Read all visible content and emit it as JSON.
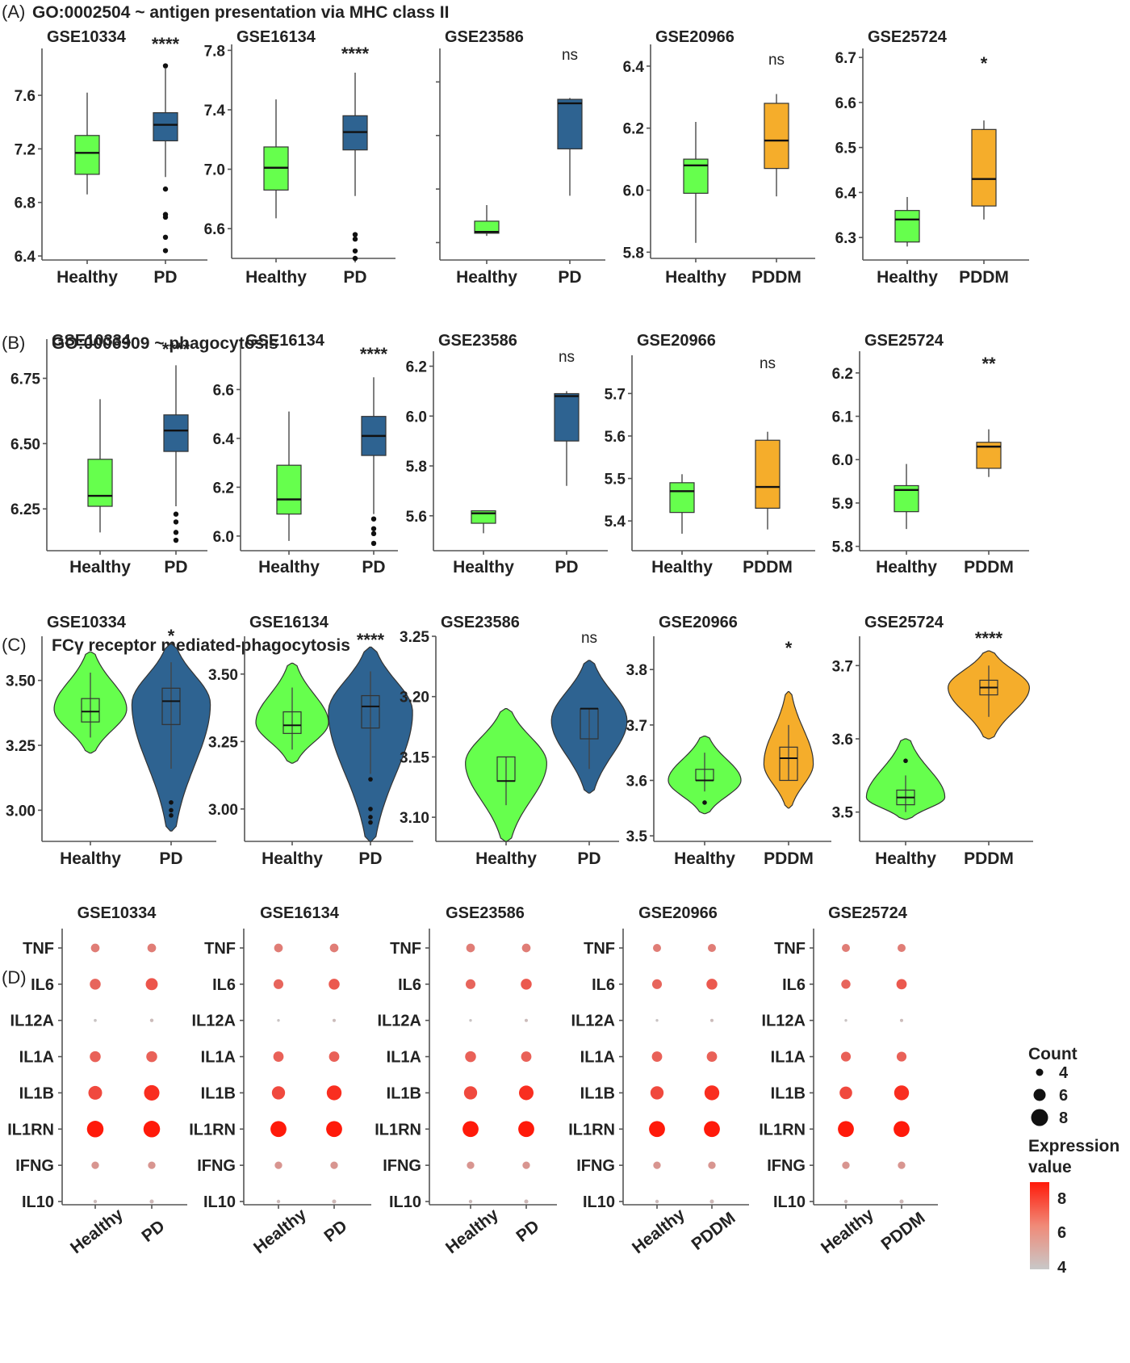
{
  "colors": {
    "healthy": "#66ff4d",
    "pd": "#2e6391",
    "pddm": "#f5ad2b",
    "low": "#c8c8c8",
    "high": "#ff1a0a"
  },
  "panels": [
    {
      "label": "(A)",
      "title": "GO:0002504 ~ antigen presentation via MHC class II"
    },
    {
      "label": "(B)",
      "title": "GO:0006909 ~ phagocytosis"
    },
    {
      "label": "(C)",
      "title": "FCγ receptor mediated-phagocytosis"
    },
    {
      "label": "(D)",
      "title": ""
    }
  ],
  "legend": {
    "count_title": "Count",
    "count_values": [
      "4",
      "6",
      "8"
    ],
    "expr_title": [
      "Expression",
      "value"
    ],
    "expr_values": [
      "8",
      "6",
      "4"
    ]
  },
  "chart_data": [
    {
      "panel": "A",
      "type": "box",
      "title": "GSE10334",
      "sig": "****",
      "categories": [
        "Healthy",
        "PD"
      ],
      "ylim": [
        6.37,
        7.95
      ],
      "yticks": [
        "6.4",
        "6.8",
        "7.2",
        "7.6"
      ],
      "boxes": [
        {
          "wlo": 6.86,
          "q1": 7.01,
          "med": 7.17,
          "q3": 7.3,
          "whi": 7.62,
          "out": []
        },
        {
          "wlo": 6.99,
          "q1": 7.26,
          "med": 7.38,
          "q3": 7.47,
          "whi": 7.8,
          "out": [
            7.82,
            6.9,
            6.71,
            6.69,
            6.54,
            6.44
          ]
        }
      ]
    },
    {
      "panel": "A",
      "type": "box",
      "title": "GSE16134",
      "sig": "****",
      "categories": [
        "Healthy",
        "PD"
      ],
      "ylim": [
        6.4,
        7.84
      ],
      "yticks": [
        "6.6",
        "7.0",
        "7.4",
        "7.8"
      ],
      "boxes": [
        {
          "wlo": 6.67,
          "q1": 6.86,
          "med": 7.01,
          "q3": 7.15,
          "whi": 7.47,
          "out": []
        },
        {
          "wlo": 6.82,
          "q1": 7.13,
          "med": 7.25,
          "q3": 7.36,
          "whi": 7.65,
          "out": [
            6.56,
            6.53,
            6.45,
            6.4
          ]
        }
      ]
    },
    {
      "panel": "A",
      "type": "box",
      "title": "GSE23586",
      "sig": "ns",
      "categories": [
        "Healthy",
        "PD"
      ],
      "ylim": [
        6.37,
        7.95
      ],
      "yticks": [
        "",
        "",
        "",
        ""
      ],
      "boxes": [
        {
          "wlo": 6.55,
          "q1": 6.57,
          "med": 6.58,
          "q3": 6.66,
          "whi": 6.78,
          "out": []
        },
        {
          "wlo": 6.85,
          "q1": 7.2,
          "med": 7.54,
          "q3": 7.57,
          "whi": 7.58,
          "out": []
        }
      ]
    },
    {
      "panel": "A",
      "type": "box",
      "title": "GSE20966",
      "sig": "ns",
      "categories": [
        "Healthy",
        "PDDM"
      ],
      "ylim": [
        5.78,
        6.47
      ],
      "yticks": [
        "5.8",
        "6.0",
        "6.2",
        "6.4"
      ],
      "boxes": [
        {
          "wlo": 5.83,
          "q1": 5.99,
          "med": 6.08,
          "q3": 6.1,
          "whi": 6.22,
          "out": []
        },
        {
          "wlo": 5.98,
          "q1": 6.07,
          "med": 6.16,
          "q3": 6.28,
          "whi": 6.31,
          "out": []
        }
      ]
    },
    {
      "panel": "A",
      "type": "box",
      "title": "GSE25724",
      "sig": "*",
      "categories": [
        "Healthy",
        "PDDM"
      ],
      "ylim": [
        6.25,
        6.72
      ],
      "yticks": [
        "6.3",
        "6.4",
        "6.5",
        "6.6",
        "6.7"
      ],
      "boxes": [
        {
          "wlo": 6.28,
          "q1": 6.29,
          "med": 6.34,
          "q3": 6.36,
          "whi": 6.39,
          "out": []
        },
        {
          "wlo": 6.34,
          "q1": 6.37,
          "med": 6.43,
          "q3": 6.54,
          "whi": 6.56,
          "out": []
        }
      ]
    },
    {
      "panel": "B",
      "type": "box",
      "title": "GSE10334",
      "sig": "****",
      "categories": [
        "Healthy",
        "PD"
      ],
      "ylim": [
        6.09,
        6.9
      ],
      "yticks": [
        "6.25",
        "6.50",
        "6.75"
      ],
      "boxes": [
        {
          "wlo": 6.16,
          "q1": 6.26,
          "med": 6.3,
          "q3": 6.44,
          "whi": 6.67,
          "out": []
        },
        {
          "wlo": 6.26,
          "q1": 6.47,
          "med": 6.55,
          "q3": 6.61,
          "whi": 6.8,
          "out": [
            6.23,
            6.2,
            6.16,
            6.13
          ]
        }
      ]
    },
    {
      "panel": "B",
      "type": "box",
      "title": "GSE16134",
      "sig": "****",
      "categories": [
        "Healthy",
        "PD"
      ],
      "ylim": [
        5.94,
        6.78
      ],
      "yticks": [
        "6.0",
        "6.2",
        "6.4",
        "6.6"
      ],
      "boxes": [
        {
          "wlo": 5.98,
          "q1": 6.09,
          "med": 6.15,
          "q3": 6.29,
          "whi": 6.51,
          "out": []
        },
        {
          "wlo": 6.09,
          "q1": 6.33,
          "med": 6.41,
          "q3": 6.49,
          "whi": 6.65,
          "out": [
            6.07,
            6.03,
            6.01,
            5.97
          ]
        }
      ]
    },
    {
      "panel": "B",
      "type": "box",
      "title": "GSE23586",
      "sig": "ns",
      "categories": [
        "Healthy",
        "PD"
      ],
      "ylim": [
        5.46,
        6.26
      ],
      "yticks": [
        "5.6",
        "5.8",
        "6.0",
        "6.2"
      ],
      "boxes": [
        {
          "wlo": 5.53,
          "q1": 5.57,
          "med": 5.61,
          "q3": 5.62,
          "whi": 5.62,
          "out": []
        },
        {
          "wlo": 5.72,
          "q1": 5.9,
          "med": 6.08,
          "q3": 6.09,
          "whi": 6.1,
          "out": []
        }
      ]
    },
    {
      "panel": "B",
      "type": "box",
      "title": "GSE20966",
      "sig": "ns",
      "categories": [
        "Healthy",
        "PDDM"
      ],
      "ylim": [
        5.33,
        5.79
      ],
      "yticks": [
        "5.4",
        "5.5",
        "5.6",
        "5.7"
      ],
      "boxes": [
        {
          "wlo": 5.37,
          "q1": 5.42,
          "med": 5.47,
          "q3": 5.49,
          "whi": 5.51,
          "out": []
        },
        {
          "wlo": 5.38,
          "q1": 5.43,
          "med": 5.48,
          "q3": 5.59,
          "whi": 5.61,
          "out": []
        }
      ]
    },
    {
      "panel": "B",
      "type": "box",
      "title": "GSE25724",
      "sig": "**",
      "categories": [
        "Healthy",
        "PDDM"
      ],
      "ylim": [
        5.79,
        6.25
      ],
      "yticks": [
        "5.8",
        "5.9",
        "6.0",
        "6.1",
        "6.2"
      ],
      "boxes": [
        {
          "wlo": 5.84,
          "q1": 5.88,
          "med": 5.93,
          "q3": 5.94,
          "whi": 5.99,
          "out": []
        },
        {
          "wlo": 5.96,
          "q1": 5.98,
          "med": 6.03,
          "q3": 6.04,
          "whi": 6.07,
          "out": []
        }
      ]
    },
    {
      "panel": "C",
      "type": "violin",
      "title": "GSE10334",
      "sig": "*",
      "categories": [
        "Healthy",
        "PD"
      ],
      "ylim": [
        2.88,
        3.67
      ],
      "yticks": [
        "3.00",
        "3.25",
        "3.50"
      ],
      "violins": [
        {
          "lo": 3.22,
          "hi": 3.61,
          "mode": 3.39,
          "width": 0.5,
          "q1": 3.34,
          "med": 3.38,
          "q3": 3.43,
          "wlo": 3.28,
          "whi": 3.53,
          "out": []
        },
        {
          "lo": 2.92,
          "hi": 3.64,
          "mode": 3.41,
          "width": 0.54,
          "q1": 3.33,
          "med": 3.42,
          "q3": 3.47,
          "wlo": 3.16,
          "whi": 3.57,
          "out": [
            3.03,
            3.0,
            2.98
          ]
        }
      ]
    },
    {
      "panel": "C",
      "type": "violin",
      "title": "GSE16134",
      "sig": "****",
      "categories": [
        "Healthy",
        "PD"
      ],
      "ylim": [
        2.88,
        3.64
      ],
      "yticks": [
        "3.00",
        "3.25",
        "3.50"
      ],
      "violins": [
        {
          "lo": 3.17,
          "hi": 3.54,
          "mode": 3.32,
          "width": 0.5,
          "q1": 3.28,
          "med": 3.31,
          "q3": 3.36,
          "wlo": 3.22,
          "whi": 3.45,
          "out": []
        },
        {
          "lo": 2.88,
          "hi": 3.6,
          "mode": 3.36,
          "width": 0.58,
          "q1": 3.3,
          "med": 3.38,
          "q3": 3.42,
          "wlo": 3.13,
          "whi": 3.51,
          "out": [
            3.11,
            3.0,
            2.97,
            2.95
          ]
        }
      ]
    },
    {
      "panel": "C",
      "type": "violin",
      "title": "GSE23586",
      "sig": "ns",
      "categories": [
        "Healthy",
        "PD"
      ],
      "ylim": [
        3.08,
        3.25
      ],
      "yticks": [
        "3.10",
        "3.15",
        "3.20",
        "3.25"
      ],
      "violins": [
        {
          "lo": 3.08,
          "hi": 3.19,
          "mode": 3.145,
          "width": 0.56,
          "q1": 3.13,
          "med": 3.13,
          "q3": 3.15,
          "wlo": 3.11,
          "whi": 3.15,
          "out": []
        },
        {
          "lo": 3.12,
          "hi": 3.23,
          "mode": 3.18,
          "width": 0.52,
          "q1": 3.165,
          "med": 3.19,
          "q3": 3.19,
          "wlo": 3.14,
          "whi": 3.19,
          "out": []
        }
      ]
    },
    {
      "panel": "C",
      "type": "violin",
      "title": "GSE20966",
      "sig": "*",
      "categories": [
        "Healthy",
        "PDDM"
      ],
      "ylim": [
        3.49,
        3.86
      ],
      "yticks": [
        "3.5",
        "3.6",
        "3.7",
        "3.8"
      ],
      "violins": [
        {
          "lo": 3.54,
          "hi": 3.68,
          "mode": 3.6,
          "width": 0.5,
          "q1": 3.6,
          "med": 3.6,
          "q3": 3.62,
          "wlo": 3.58,
          "whi": 3.65,
          "out": [
            3.56
          ]
        },
        {
          "lo": 3.55,
          "hi": 3.76,
          "mode": 3.63,
          "width": 0.34,
          "q1": 3.6,
          "med": 3.64,
          "q3": 3.66,
          "wlo": 3.6,
          "whi": 3.7,
          "out": []
        }
      ]
    },
    {
      "panel": "C",
      "type": "violin",
      "title": "GSE25724",
      "sig": "****",
      "categories": [
        "Healthy",
        "PDDM"
      ],
      "ylim": [
        3.46,
        3.74
      ],
      "yticks": [
        "3.5",
        "3.6",
        "3.7"
      ],
      "violins": [
        {
          "lo": 3.49,
          "hi": 3.6,
          "mode": 3.52,
          "width": 0.54,
          "q1": 3.51,
          "med": 3.52,
          "q3": 3.53,
          "wlo": 3.5,
          "whi": 3.55,
          "out": [
            3.57
          ]
        },
        {
          "lo": 3.6,
          "hi": 3.72,
          "mode": 3.67,
          "width": 0.56,
          "q1": 3.66,
          "med": 3.67,
          "q3": 3.68,
          "wlo": 3.63,
          "whi": 3.7,
          "out": []
        }
      ]
    },
    {
      "panel": "D",
      "type": "dot",
      "title": "GSE10334",
      "genes": [
        "TNF",
        "IL6",
        "IL12A",
        "IL1A",
        "IL1B",
        "IL1RN",
        "IFNG",
        "IL10"
      ],
      "categories": [
        "Healthy",
        "PD"
      ],
      "count": [
        [
          5.2,
          5.2
        ],
        [
          6.0,
          6.4
        ],
        [
          3.2,
          3.4
        ],
        [
          6.0,
          6.0
        ],
        [
          7.0,
          7.6
        ],
        [
          8.0,
          8.0
        ],
        [
          4.8,
          4.8
        ],
        [
          3.4,
          3.6
        ]
      ],
      "expression": [
        [
          5.9,
          5.9
        ],
        [
          6.5,
          6.9
        ],
        [
          4.1,
          4.3
        ],
        [
          6.6,
          6.6
        ],
        [
          7.2,
          7.9
        ],
        [
          8.4,
          8.4
        ],
        [
          5.3,
          5.3
        ],
        [
          4.3,
          4.4
        ]
      ]
    },
    {
      "panel": "D",
      "type": "dot",
      "title": "GSE16134",
      "genes": [
        "TNF",
        "IL6",
        "IL12A",
        "IL1A",
        "IL1B",
        "IL1RN",
        "IFNG",
        "IL10"
      ],
      "categories": [
        "Healthy",
        "PD"
      ],
      "count": [
        [
          5.2,
          5.2
        ],
        [
          5.6,
          6.0
        ],
        [
          3.1,
          3.3
        ],
        [
          5.8,
          5.8
        ],
        [
          6.8,
          7.4
        ],
        [
          7.8,
          7.8
        ],
        [
          4.8,
          4.8
        ],
        [
          3.4,
          3.6
        ]
      ],
      "expression": [
        [
          5.9,
          5.9
        ],
        [
          6.5,
          6.8
        ],
        [
          4.1,
          4.3
        ],
        [
          6.6,
          6.6
        ],
        [
          7.2,
          7.9
        ],
        [
          8.4,
          8.4
        ],
        [
          5.3,
          5.3
        ],
        [
          4.3,
          4.4
        ]
      ]
    },
    {
      "panel": "D",
      "type": "dot",
      "title": "GSE23586",
      "genes": [
        "TNF",
        "IL6",
        "IL12A",
        "IL1A",
        "IL1B",
        "IL1RN",
        "IFNG",
        "IL10"
      ],
      "categories": [
        "Healthy",
        "PD"
      ],
      "count": [
        [
          5.2,
          5.2
        ],
        [
          5.6,
          6.0
        ],
        [
          3.1,
          3.3
        ],
        [
          6.0,
          5.8
        ],
        [
          6.8,
          7.3
        ],
        [
          7.8,
          7.8
        ],
        [
          4.8,
          4.8
        ],
        [
          3.4,
          3.6
        ]
      ],
      "expression": [
        [
          5.9,
          5.9
        ],
        [
          6.5,
          6.8
        ],
        [
          4.1,
          4.3
        ],
        [
          6.6,
          6.6
        ],
        [
          7.2,
          7.9
        ],
        [
          8.4,
          8.4
        ],
        [
          5.3,
          5.3
        ],
        [
          4.3,
          4.4
        ]
      ]
    },
    {
      "panel": "D",
      "type": "dot",
      "title": "GSE20966",
      "genes": [
        "TNF",
        "IL6",
        "IL12A",
        "IL1A",
        "IL1B",
        "IL1RN",
        "IFNG",
        "IL10"
      ],
      "categories": [
        "Healthy",
        "PDDM"
      ],
      "count": [
        [
          5.0,
          5.0
        ],
        [
          5.6,
          6.0
        ],
        [
          3.1,
          3.3
        ],
        [
          5.8,
          5.8
        ],
        [
          6.8,
          7.4
        ],
        [
          7.8,
          7.8
        ],
        [
          4.8,
          4.8
        ],
        [
          3.4,
          3.6
        ]
      ],
      "expression": [
        [
          5.9,
          5.9
        ],
        [
          6.5,
          6.8
        ],
        [
          4.1,
          4.3
        ],
        [
          6.6,
          6.6
        ],
        [
          7.2,
          7.9
        ],
        [
          8.4,
          8.4
        ],
        [
          5.3,
          5.3
        ],
        [
          4.3,
          4.4
        ]
      ]
    },
    {
      "panel": "D",
      "type": "dot",
      "title": "GSE25724",
      "genes": [
        "TNF",
        "IL6",
        "IL12A",
        "IL1A",
        "IL1B",
        "IL1RN",
        "IFNG",
        "IL10"
      ],
      "categories": [
        "Healthy",
        "PDDM"
      ],
      "count": [
        [
          5.0,
          5.0
        ],
        [
          5.4,
          5.8
        ],
        [
          3.1,
          3.3
        ],
        [
          5.6,
          5.6
        ],
        [
          6.6,
          7.4
        ],
        [
          7.8,
          7.8
        ],
        [
          4.8,
          4.8
        ],
        [
          3.4,
          3.6
        ]
      ],
      "expression": [
        [
          5.9,
          5.9
        ],
        [
          6.5,
          6.8
        ],
        [
          4.1,
          4.3
        ],
        [
          6.6,
          6.6
        ],
        [
          7.2,
          7.9
        ],
        [
          8.4,
          8.4
        ],
        [
          5.3,
          5.3
        ],
        [
          4.3,
          4.4
        ]
      ]
    }
  ]
}
